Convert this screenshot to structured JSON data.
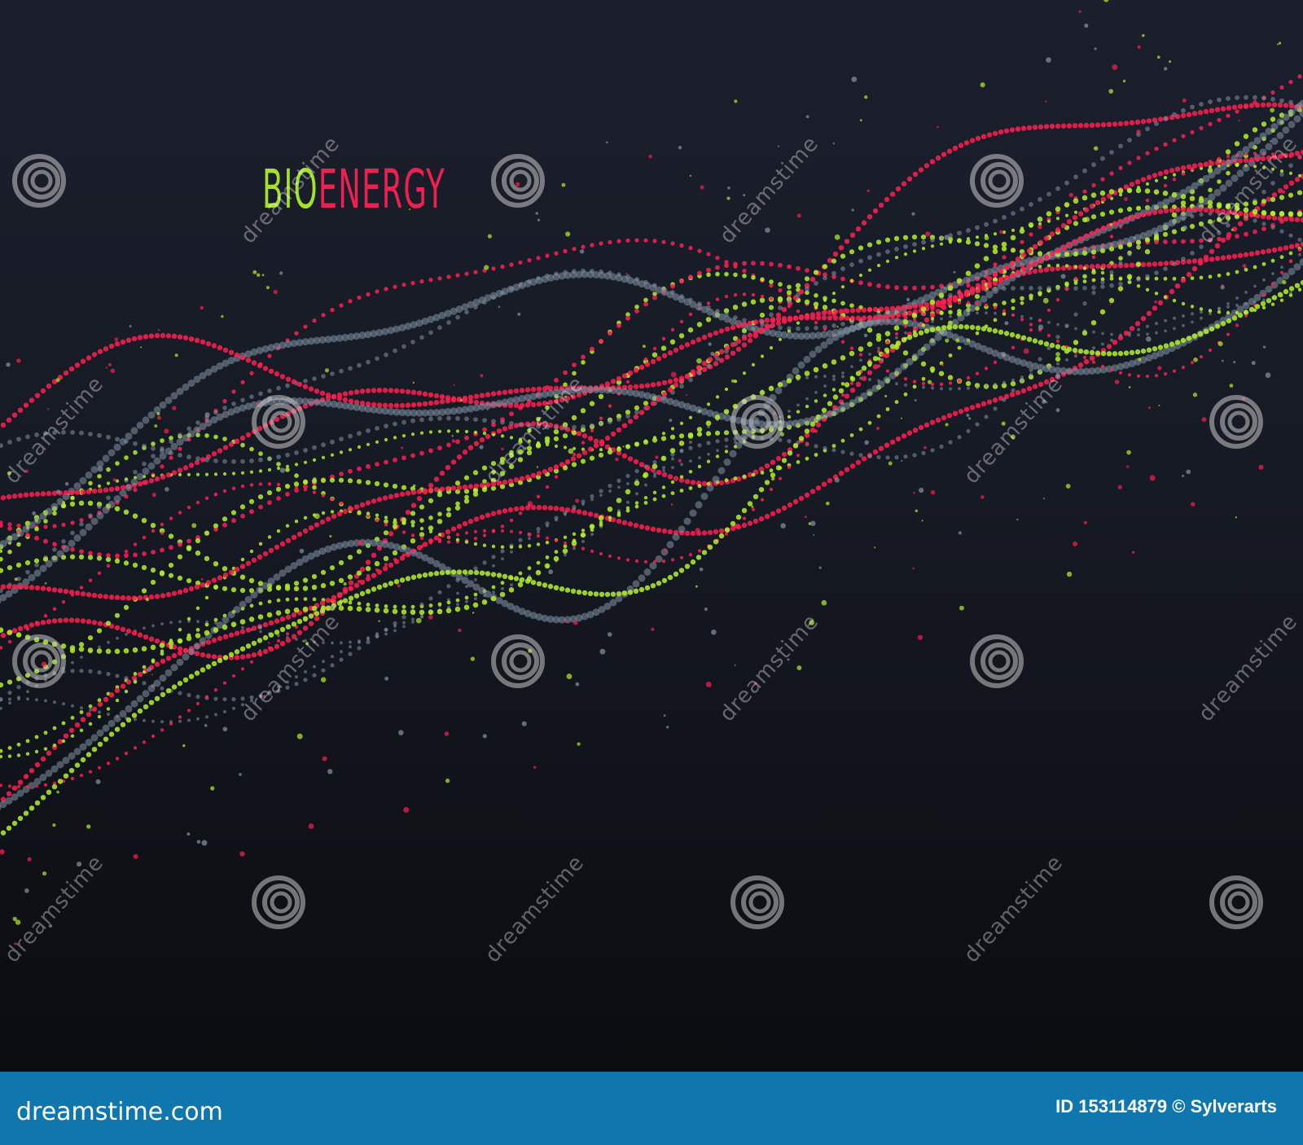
{
  "artwork": {
    "title_part1": "BIO",
    "title_part2": "ENERGY",
    "colors": {
      "background": "#1b1f2c",
      "red": "#ff1e50",
      "green": "#b4f02a",
      "gray": "#8494a6",
      "title_green": "#a4e22a",
      "title_red": "#ee2050"
    },
    "watermark_text": "dreamstime",
    "watermark_icon": "spiral-icon"
  },
  "footer": {
    "logo": "dreamstime.com",
    "credit": "ID 153114879 © Sylverarts",
    "background": "#0f76ae"
  }
}
